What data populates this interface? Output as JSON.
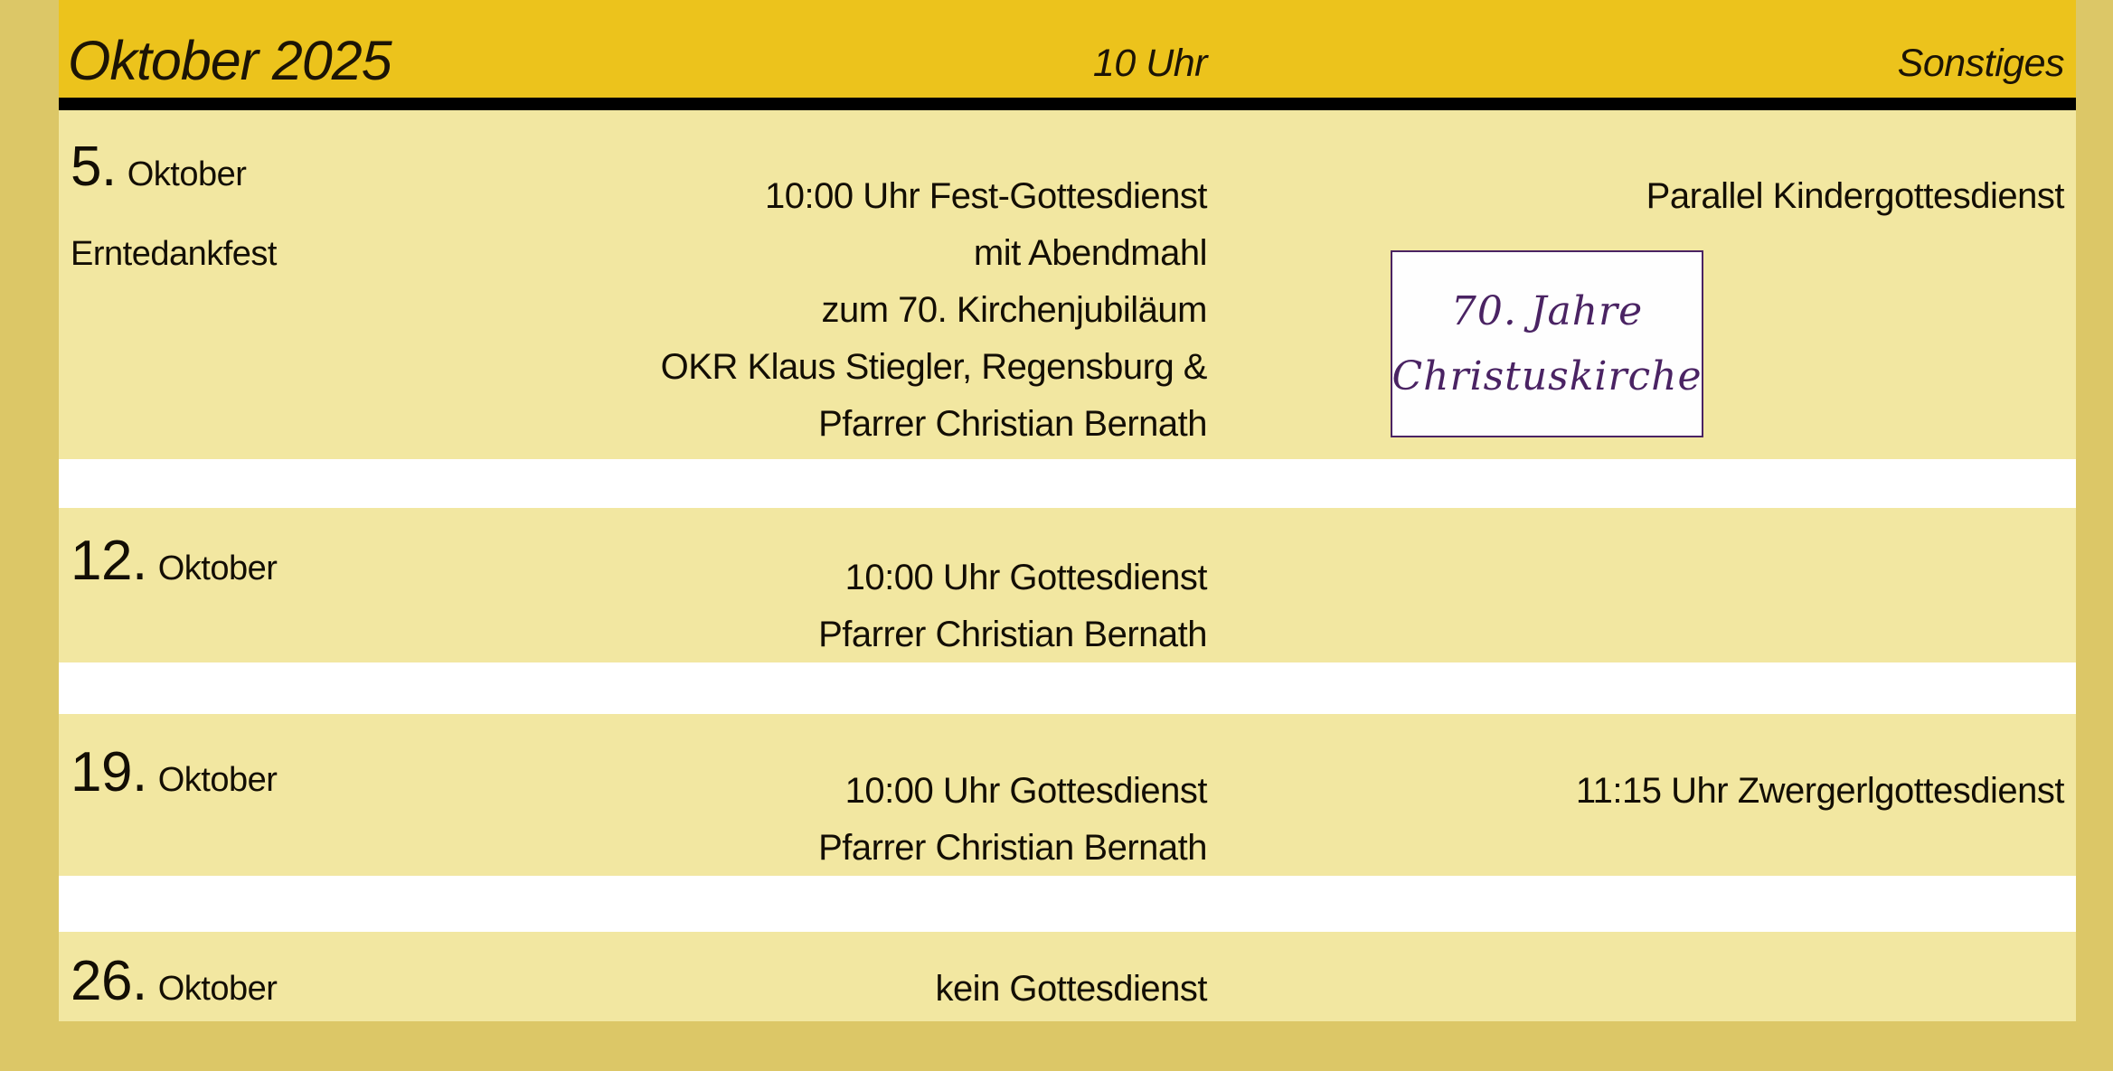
{
  "colors": {
    "frame_gold": "#dcc767",
    "header_gold": "#ecc31c",
    "row_yellow": "#f2e7a1",
    "divider_black": "#000000",
    "text_black": "#130e04",
    "badge_purple": "#4a2363",
    "badge_white": "#fefefe"
  },
  "header": {
    "title": "Oktober 2025",
    "service_column": "10 Uhr",
    "other_column": "Sonstiges"
  },
  "rows": [
    {
      "day": "5.",
      "month": "Oktober",
      "note": "Erntedankfest",
      "service_lines": [
        "10:00 Uhr Fest-Gottesdienst",
        "mit Abendmahl",
        "zum 70. Kirchenjubiläum",
        "OKR Klaus Stiegler, Regensburg &",
        "Pfarrer Christian Bernath"
      ],
      "other": "Parallel Kindergottesdienst",
      "badge": {
        "line1": "70. Jahre",
        "line2": "Christuskirche"
      }
    },
    {
      "day": "12.",
      "month": "Oktober",
      "service_lines": [
        "10:00 Uhr Gottesdienst",
        "Pfarrer Christian Bernath"
      ]
    },
    {
      "day": "19.",
      "month": "Oktober",
      "service_lines": [
        "10:00 Uhr Gottesdienst",
        "Pfarrer Christian Bernath"
      ],
      "other": "11:15 Uhr Zwergerlgottesdienst"
    },
    {
      "day": "26.",
      "month": "Oktober",
      "service_lines": [
        "kein Gottesdienst"
      ]
    }
  ]
}
